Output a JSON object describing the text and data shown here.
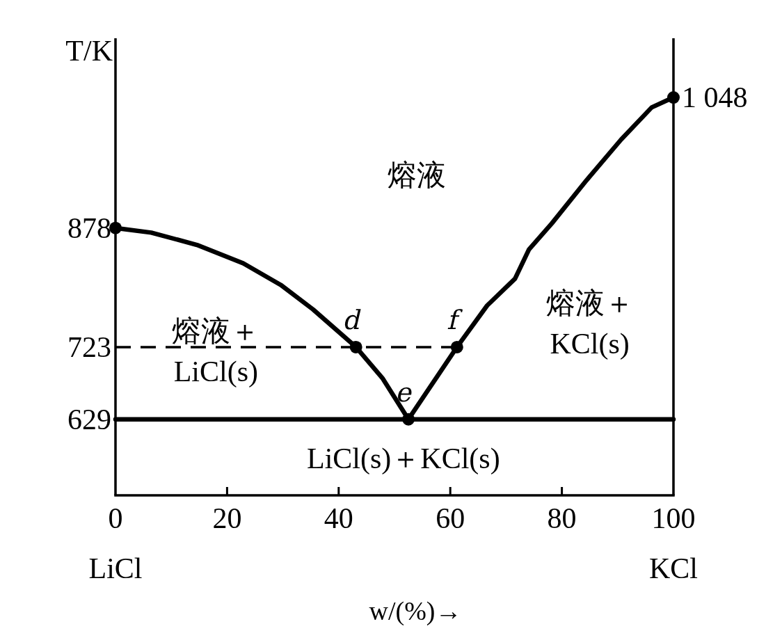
{
  "chart_data": {
    "type": "line",
    "xlabel": "w/(%)→",
    "ylabel": "T/K",
    "xlim": [
      0,
      100
    ],
    "xticks": [
      {
        "value": 0,
        "label": "0\nLiCl"
      },
      20,
      40,
      60,
      80,
      {
        "value": 100,
        "label": "100\nKCl"
      }
    ],
    "ylim": [
      530,
      1125
    ],
    "yticks": [
      629,
      723,
      878
    ],
    "series": [
      {
        "color": "#000000",
        "x": [
          0,
          6.4,
          14.6,
          22.9,
          29.6,
          35.4,
          43.1,
          47.9,
          52.5
        ],
        "values": [
          878,
          872,
          856,
          832,
          804,
          772,
          723,
          682,
          629
        ]
      },
      {
        "color": "#000000",
        "x": [
          52.5,
          61.2,
          66.6,
          71.6,
          74.1,
          78.2,
          84.4,
          90.6,
          96.1,
          100
        ],
        "values": [
          629,
          723,
          777,
          812,
          850,
          884,
          940,
          993,
          1035,
          1048
        ]
      },
      {
        "color": "#000000",
        "line_style": "dashed",
        "x": [
          0,
          61.2
        ],
        "values": [
          723,
          723
        ]
      },
      {
        "color": "#000000",
        "x": [
          0,
          100
        ],
        "values": [
          629,
          629
        ]
      },
      {
        "type": "scatter",
        "color": "#000000",
        "marker": "circle",
        "x": [
          0,
          43.1,
          52.5,
          61.2,
          100
        ],
        "values": [
          878,
          723,
          629,
          723,
          1048
        ]
      }
    ],
    "annotations": [
      "熔液",
      "熔液＋\nLiCl(s)",
      "熔液＋\nKCl(s)",
      "LiCl(s)＋KCl(s)",
      {
        "text": "d",
        "x": 43.1,
        "y": 723
      },
      {
        "text": "e",
        "x": 52.5,
        "y": 629
      },
      {
        "text": "f",
        "x": 61.2,
        "y": 723
      },
      {
        "text": "1 048",
        "x": 100,
        "y": 1048
      }
    ]
  }
}
